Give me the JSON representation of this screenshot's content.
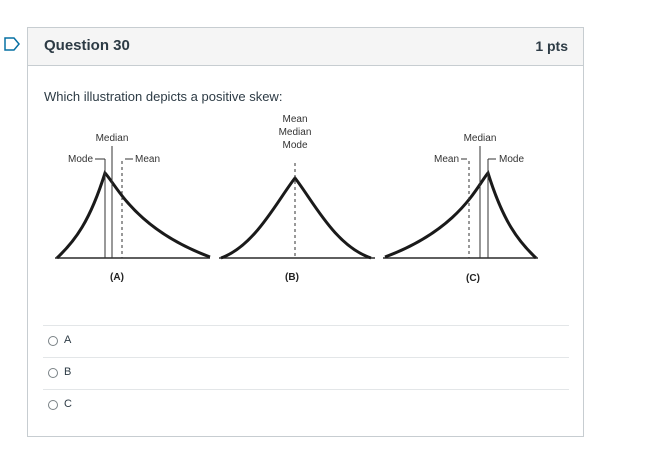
{
  "question": {
    "title": "Question 30",
    "points": "1 pts",
    "prompt": "Which illustration depicts a positive skew:"
  },
  "illustration": {
    "a": {
      "median": "Median",
      "mode": "Mode",
      "mean": "Mean",
      "caption": "(A)"
    },
    "b": {
      "mean": "Mean",
      "median": "Median",
      "mode": "Mode",
      "caption": "(B)"
    },
    "c": {
      "median": "Median",
      "mean": "Mean",
      "mode": "Mode",
      "caption": "(C)"
    }
  },
  "answers": [
    {
      "label": "A"
    },
    {
      "label": "B"
    },
    {
      "label": "C"
    }
  ],
  "colors": {
    "flag_outline": "#0770a3",
    "header_bg": "#f5f5f5",
    "border": "#c7cdd1"
  }
}
